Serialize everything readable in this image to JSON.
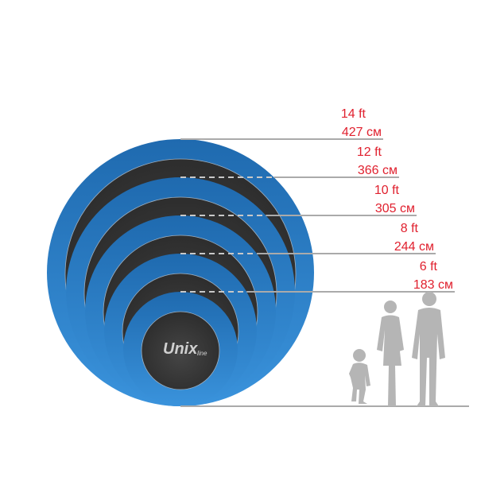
{
  "sizes": [
    {
      "ft": "14 ft",
      "cm": "427 см"
    },
    {
      "ft": "12 ft",
      "cm": "366 см"
    },
    {
      "ft": "10 ft",
      "cm": "305 см"
    },
    {
      "ft": "8 ft",
      "cm": "244 см"
    },
    {
      "ft": "6 ft",
      "cm": "183 см"
    }
  ],
  "logo": {
    "main": "Unix",
    "sub": "line"
  },
  "colors": {
    "ring": "#2a78c0",
    "mat": "#3a3a3a",
    "label": "#e0202e",
    "line": "#aaaaaa",
    "silhouette": "#b5b5b5"
  }
}
